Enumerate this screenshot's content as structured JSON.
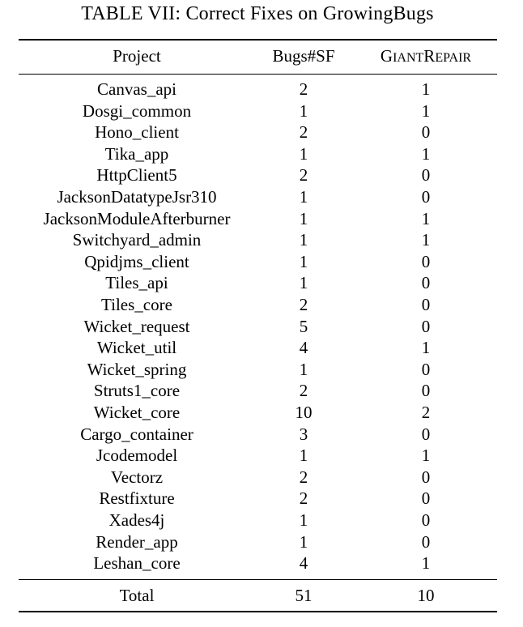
{
  "caption": "TABLE VII: Correct Fixes on GrowingBugs",
  "headers": {
    "project": "Project",
    "bugs": "Bugs#SF",
    "giant": "GIANTREPAIR"
  },
  "rows": [
    {
      "project": "Canvas_api",
      "bugs": "2",
      "giant": "1"
    },
    {
      "project": "Dosgi_common",
      "bugs": "1",
      "giant": "1"
    },
    {
      "project": "Hono_client",
      "bugs": "2",
      "giant": "0"
    },
    {
      "project": "Tika_app",
      "bugs": "1",
      "giant": "1"
    },
    {
      "project": "HttpClient5",
      "bugs": "2",
      "giant": "0"
    },
    {
      "project": "JacksonDatatypeJsr310",
      "bugs": "1",
      "giant": "0"
    },
    {
      "project": "JacksonModuleAfterburner",
      "bugs": "1",
      "giant": "1"
    },
    {
      "project": "Switchyard_admin",
      "bugs": "1",
      "giant": "1"
    },
    {
      "project": "Qpidjms_client",
      "bugs": "1",
      "giant": "0"
    },
    {
      "project": "Tiles_api",
      "bugs": "1",
      "giant": "0"
    },
    {
      "project": "Tiles_core",
      "bugs": "2",
      "giant": "0"
    },
    {
      "project": "Wicket_request",
      "bugs": "5",
      "giant": "0"
    },
    {
      "project": "Wicket_util",
      "bugs": "4",
      "giant": "1"
    },
    {
      "project": "Wicket_spring",
      "bugs": "1",
      "giant": "0"
    },
    {
      "project": "Struts1_core",
      "bugs": "2",
      "giant": "0"
    },
    {
      "project": "Wicket_core",
      "bugs": "10",
      "giant": "2"
    },
    {
      "project": "Cargo_container",
      "bugs": "3",
      "giant": "0"
    },
    {
      "project": "Jcodemodel",
      "bugs": "1",
      "giant": "1"
    },
    {
      "project": "Vectorz",
      "bugs": "2",
      "giant": "0"
    },
    {
      "project": "Restfixture",
      "bugs": "2",
      "giant": "0"
    },
    {
      "project": "Xades4j",
      "bugs": "1",
      "giant": "0"
    },
    {
      "project": "Render_app",
      "bugs": "1",
      "giant": "0"
    },
    {
      "project": "Leshan_core",
      "bugs": "4",
      "giant": "1"
    }
  ],
  "total": {
    "label": "Total",
    "bugs": "51",
    "giant": "10"
  }
}
